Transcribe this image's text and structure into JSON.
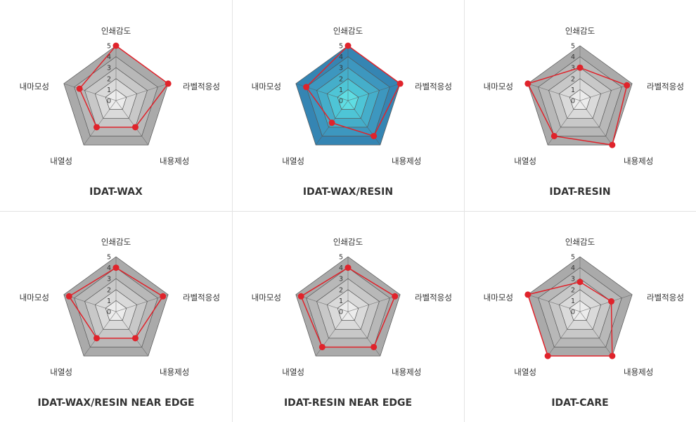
{
  "chart_data": [
    {
      "type": "radar",
      "title": "IDAT-WAX",
      "axes": [
        "인쇄감도",
        "라벨적응성",
        "내용제성",
        "내열성",
        "내마모성"
      ],
      "ticks": [
        "0",
        "1",
        "2",
        "3",
        "4",
        "5"
      ],
      "range": [
        0,
        5
      ],
      "values": [
        5,
        5,
        3,
        3,
        3.5
      ],
      "highlighted": false
    },
    {
      "type": "radar",
      "title": "IDAT-WAX/RESIN",
      "axes": [
        "인쇄감도",
        "라벨적응성",
        "내용제성",
        "내열성",
        "내마모성"
      ],
      "ticks": [
        "0",
        "1",
        "2",
        "3",
        "4",
        "5"
      ],
      "range": [
        0,
        5
      ],
      "values": [
        5,
        5,
        4,
        2.5,
        4
      ],
      "highlighted": true
    },
    {
      "type": "radar",
      "title": "IDAT-RESIN",
      "axes": [
        "인쇄감도",
        "라벨적응성",
        "내용제성",
        "내열성",
        "내마모성"
      ],
      "ticks": [
        "0",
        "1",
        "2",
        "3",
        "4",
        "5"
      ],
      "range": [
        0,
        5
      ],
      "values": [
        3,
        4.5,
        5,
        4,
        5
      ],
      "highlighted": false
    },
    {
      "type": "radar",
      "title": "IDAT-WAX/RESIN NEAR EDGE",
      "axes": [
        "인쇄감도",
        "라벨적응성",
        "내용제성",
        "내열성",
        "내마모성"
      ],
      "ticks": [
        "0",
        "1",
        "2",
        "3",
        "4",
        "5"
      ],
      "range": [
        0,
        5
      ],
      "values": [
        4,
        4.5,
        3,
        3,
        4.5
      ],
      "highlighted": false
    },
    {
      "type": "radar",
      "title": "IDAT-RESIN NEAR EDGE",
      "axes": [
        "인쇄감도",
        "라벨적응성",
        "내용제성",
        "내열성",
        "내마모성"
      ],
      "ticks": [
        "0",
        "1",
        "2",
        "3",
        "4",
        "5"
      ],
      "range": [
        0,
        5
      ],
      "values": [
        4,
        4.5,
        4,
        4,
        4.5
      ],
      "highlighted": false
    },
    {
      "type": "radar",
      "title": "IDAT-CARE",
      "axes": [
        "인쇄감도",
        "라벨적응성",
        "내용제성",
        "내열성",
        "내마모성"
      ],
      "ticks": [
        "0",
        "1",
        "2",
        "3",
        "4",
        "5"
      ],
      "range": [
        0,
        5
      ],
      "values": [
        2.7,
        3,
        5,
        5,
        5
      ],
      "highlighted": false
    }
  ],
  "colors": {
    "series_line": "#e0232b",
    "series_point": "#e0232b",
    "gray_bands": [
      "#ffffff",
      "#ececec",
      "#dadada",
      "#c8c8c8",
      "#b8b8b8",
      "#aaaaaa"
    ],
    "blue_bands": [
      "#7ff0ef",
      "#5fdde3",
      "#4ec5d6",
      "#45aeca",
      "#3d97bf",
      "#3585b3"
    ],
    "grid_line": "#555555"
  }
}
